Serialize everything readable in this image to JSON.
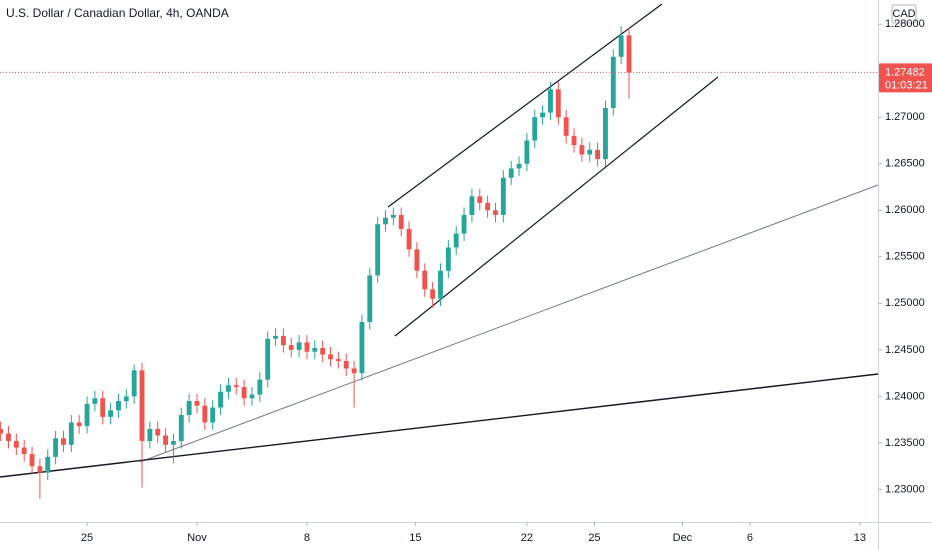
{
  "chart_data": {
    "type": "candlestick",
    "title": "U.S. Dollar / Canadian Dollar, 4h, OANDA",
    "currency": "CAD",
    "countdown": "01:03:21",
    "up_color": "#26a69a",
    "down_color": "#ef5350",
    "grid": false,
    "x": [
      -5.5,
      -5,
      -4.5,
      -4,
      -3.5,
      -3,
      -2.5,
      -2,
      -1.5,
      -1,
      -0.5,
      0,
      0.5,
      1,
      1.5,
      2,
      2.5,
      3,
      3.5,
      4,
      4.5,
      5,
      5.5,
      6,
      6.5,
      7,
      7.5,
      8,
      8.5,
      9,
      9.5,
      10,
      10.5,
      11,
      11.5,
      12,
      12.5,
      13,
      13.5,
      14,
      14.5,
      15,
      15.5,
      16,
      16.5,
      17,
      17.5,
      18,
      18.5,
      19,
      19.5,
      20,
      20.5,
      21,
      21.5,
      22,
      22.5,
      23,
      23.5,
      24,
      24.5,
      25,
      25.5,
      26,
      26.5,
      27,
      27.5,
      28,
      28.5,
      29,
      29.5,
      30,
      30.5,
      31,
      31.5,
      32,
      32.5,
      33,
      33.5,
      34,
      34.5
    ],
    "open": [
      1.2365,
      1.236,
      1.2352,
      1.2345,
      1.2338,
      1.2325,
      1.2318,
      1.2335,
      1.2355,
      1.2348,
      1.2372,
      1.2368,
      1.2392,
      1.2398,
      1.2378,
      1.2385,
      1.2395,
      1.24,
      1.2428,
      1.2352,
      1.2365,
      1.2358,
      1.2348,
      1.2352,
      1.238,
      1.2395,
      1.239,
      1.2372,
      1.2388,
      1.2405,
      1.2412,
      1.241,
      1.2398,
      1.2402,
      1.2418,
      1.2462,
      1.2465,
      1.2455,
      1.245,
      1.2458,
      1.2448,
      1.2452,
      1.2445,
      1.244,
      1.2438,
      1.243,
      1.2425,
      1.248,
      1.253,
      1.2585,
      1.2592,
      1.2595,
      1.258,
      1.2558,
      1.2535,
      1.2515,
      1.2505,
      1.2535,
      1.256,
      1.2575,
      1.2595,
      1.2615,
      1.2608,
      1.26,
      1.2595,
      1.2635,
      1.2645,
      1.265,
      1.2675,
      1.27,
      1.2705,
      1.273,
      1.27,
      1.268,
      1.267,
      1.266,
      1.2665,
      1.2655,
      1.271,
      1.2765,
      1.2788
    ],
    "high": [
      1.2373,
      1.2368,
      1.236,
      1.2353,
      1.2346,
      1.2333,
      1.2343,
      1.2363,
      1.2363,
      1.238,
      1.238,
      1.24,
      1.2406,
      1.2406,
      1.2393,
      1.2403,
      1.2408,
      1.2434,
      1.2436,
      1.2373,
      1.2373,
      1.2366,
      1.236,
      1.2388,
      1.2403,
      1.2403,
      1.2398,
      1.2396,
      1.2413,
      1.242,
      1.242,
      1.2418,
      1.241,
      1.2426,
      1.247,
      1.2473,
      1.2473,
      1.2463,
      1.2466,
      1.2466,
      1.246,
      1.246,
      1.2453,
      1.2448,
      1.2446,
      1.2438,
      1.2488,
      1.2538,
      1.2593,
      1.26,
      1.2603,
      1.2603,
      1.2588,
      1.2566,
      1.2543,
      1.2523,
      1.2543,
      1.2568,
      1.2583,
      1.2603,
      1.2623,
      1.2623,
      1.2616,
      1.2608,
      1.2643,
      1.2653,
      1.2658,
      1.2683,
      1.2708,
      1.2713,
      1.2738,
      1.2738,
      1.2708,
      1.2688,
      1.2678,
      1.2673,
      1.2673,
      1.2718,
      1.2773,
      1.2798,
      1.2796
    ],
    "low": [
      1.2352,
      1.2344,
      1.2337,
      1.233,
      1.2317,
      1.229,
      1.231,
      1.2327,
      1.234,
      1.234,
      1.236,
      1.236,
      1.2384,
      1.237,
      1.237,
      1.2377,
      1.2387,
      1.2392,
      1.2302,
      1.2344,
      1.235,
      1.234,
      1.2328,
      1.2344,
      1.2372,
      1.2382,
      1.2364,
      1.2364,
      1.238,
      1.2397,
      1.2402,
      1.239,
      1.239,
      1.2394,
      1.241,
      1.2454,
      1.2447,
      1.2442,
      1.2442,
      1.244,
      1.244,
      1.2437,
      1.2432,
      1.243,
      1.2422,
      1.2388,
      1.2417,
      1.2472,
      1.2522,
      1.2577,
      1.2584,
      1.2572,
      1.255,
      1.2527,
      1.2507,
      1.2495,
      1.2497,
      1.2527,
      1.2552,
      1.2567,
      1.2587,
      1.26,
      1.2592,
      1.2587,
      1.2587,
      1.2627,
      1.2637,
      1.2642,
      1.2667,
      1.2692,
      1.2697,
      1.2692,
      1.2672,
      1.2662,
      1.2652,
      1.2652,
      1.2647,
      1.2647,
      1.2702,
      1.2757,
      1.272
    ],
    "close": [
      1.236,
      1.2352,
      1.2345,
      1.2338,
      1.2325,
      1.2318,
      1.2335,
      1.2355,
      1.2348,
      1.2372,
      1.2368,
      1.2392,
      1.2398,
      1.2378,
      1.2385,
      1.2395,
      1.24,
      1.2428,
      1.2352,
      1.2365,
      1.2358,
      1.2348,
      1.2352,
      1.238,
      1.2395,
      1.239,
      1.2372,
      1.2388,
      1.2405,
      1.2412,
      1.241,
      1.2398,
      1.2402,
      1.2418,
      1.2462,
      1.2465,
      1.2455,
      1.245,
      1.2458,
      1.2448,
      1.2452,
      1.2445,
      1.244,
      1.2438,
      1.243,
      1.2425,
      1.248,
      1.253,
      1.2585,
      1.2592,
      1.2595,
      1.258,
      1.2558,
      1.2535,
      1.2515,
      1.2505,
      1.2535,
      1.256,
      1.2575,
      1.2595,
      1.2615,
      1.2608,
      1.26,
      1.2595,
      1.2635,
      1.2645,
      1.265,
      1.2675,
      1.27,
      1.2705,
      1.273,
      1.27,
      1.268,
      1.267,
      1.266,
      1.2665,
      1.2655,
      1.271,
      1.2765,
      1.2788,
      1.27482
    ],
    "xlim": [
      -5.54,
      50.35
    ],
    "xticks": [
      {
        "value": 0,
        "label": "25"
      },
      {
        "value": 7,
        "label": "Nov"
      },
      {
        "value": 14,
        "label": "8"
      },
      {
        "value": 20.9,
        "label": "15"
      },
      {
        "value": 28,
        "label": "22"
      },
      {
        "value": 32.3,
        "label": "25"
      },
      {
        "value": 37.9,
        "label": "Dec"
      },
      {
        "value": 42.2,
        "label": "6"
      },
      {
        "value": 49.2,
        "label": "13"
      }
    ],
    "ylim": [
      1.2265,
      1.2826
    ],
    "yticks": [
      {
        "value": 1.23,
        "label": "1.23000"
      },
      {
        "value": 1.235,
        "label": "1.23500"
      },
      {
        "value": 1.24,
        "label": "1.24000"
      },
      {
        "value": 1.245,
        "label": "1.24500"
      },
      {
        "value": 1.25,
        "label": "1.25000"
      },
      {
        "value": 1.255,
        "label": "1.25500"
      },
      {
        "value": 1.26,
        "label": "1.26000"
      },
      {
        "value": 1.265,
        "label": "1.26500"
      },
      {
        "value": 1.27,
        "label": "1.27000"
      },
      {
        "value": 1.275,
        "label": "1.27500"
      },
      {
        "value": 1.28,
        "label": "1.28000"
      }
    ]
  }
}
